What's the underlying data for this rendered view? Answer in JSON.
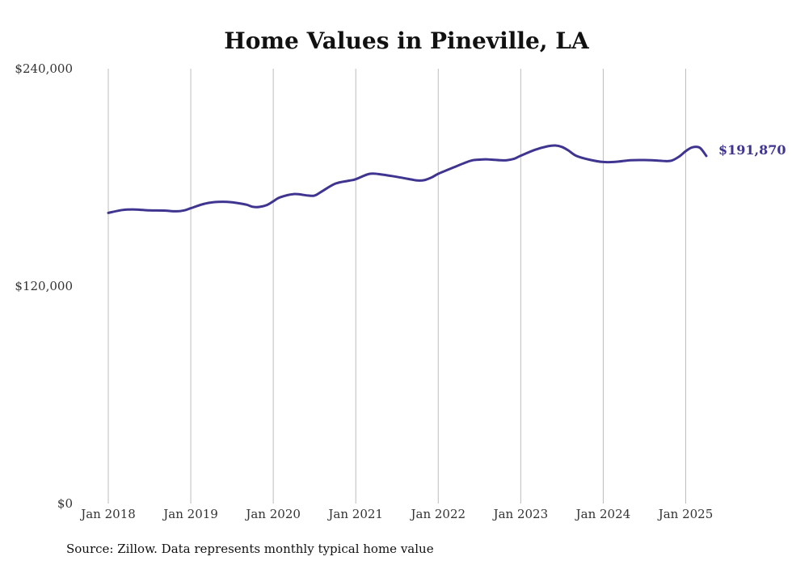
{
  "chart_data": {
    "type": "line",
    "title": "Home Values in Pineville, LA",
    "source": "Source: Zillow. Data represents monthly typical home value",
    "ylim": [
      0,
      240000
    ],
    "y_ticks": [
      {
        "value": 0,
        "label": "$0"
      },
      {
        "value": 120000,
        "label": "$120,000"
      },
      {
        "value": 240000,
        "label": "$240,000"
      }
    ],
    "x_ticks": [
      {
        "value": 2018.0,
        "label": "Jan 2018"
      },
      {
        "value": 2019.0,
        "label": "Jan 2019"
      },
      {
        "value": 2020.0,
        "label": "Jan 2020"
      },
      {
        "value": 2021.0,
        "label": "Jan 2021"
      },
      {
        "value": 2022.0,
        "label": "Jan 2022"
      },
      {
        "value": 2023.0,
        "label": "Jan 2023"
      },
      {
        "value": 2024.0,
        "label": "Jan 2024"
      },
      {
        "value": 2025.0,
        "label": "Jan 2025"
      }
    ],
    "xlim": [
      2018.0,
      2025.25
    ],
    "grid": "vertical",
    "line_color": "#3f3590",
    "end_label": "$191,870",
    "series": [
      {
        "points": [
          [
            2018.0,
            160400
          ],
          [
            2018.17,
            162000
          ],
          [
            2018.33,
            162300
          ],
          [
            2018.5,
            161800
          ],
          [
            2018.67,
            161700
          ],
          [
            2018.83,
            161300
          ],
          [
            2018.92,
            161800
          ],
          [
            2019.0,
            163000
          ],
          [
            2019.17,
            165500
          ],
          [
            2019.33,
            166500
          ],
          [
            2019.5,
            166300
          ],
          [
            2019.67,
            165000
          ],
          [
            2019.75,
            163800
          ],
          [
            2019.83,
            163700
          ],
          [
            2019.92,
            164700
          ],
          [
            2020.0,
            166800
          ],
          [
            2020.08,
            169000
          ],
          [
            2020.25,
            170800
          ],
          [
            2020.42,
            170000
          ],
          [
            2020.5,
            170000
          ],
          [
            2020.58,
            172000
          ],
          [
            2020.75,
            176500
          ],
          [
            2020.92,
            178200
          ],
          [
            2021.0,
            179000
          ],
          [
            2021.17,
            182000
          ],
          [
            2021.33,
            181500
          ],
          [
            2021.5,
            180300
          ],
          [
            2021.67,
            178900
          ],
          [
            2021.75,
            178300
          ],
          [
            2021.83,
            178500
          ],
          [
            2021.92,
            180000
          ],
          [
            2022.0,
            182000
          ],
          [
            2022.17,
            185200
          ],
          [
            2022.33,
            188200
          ],
          [
            2022.42,
            189500
          ],
          [
            2022.5,
            189800
          ],
          [
            2022.58,
            190000
          ],
          [
            2022.75,
            189500
          ],
          [
            2022.83,
            189500
          ],
          [
            2022.92,
            190300
          ],
          [
            2023.0,
            192000
          ],
          [
            2023.17,
            195200
          ],
          [
            2023.33,
            197200
          ],
          [
            2023.42,
            197600
          ],
          [
            2023.5,
            196800
          ],
          [
            2023.58,
            194800
          ],
          [
            2023.67,
            192000
          ],
          [
            2023.83,
            189800
          ],
          [
            2024.0,
            188500
          ],
          [
            2024.17,
            188700
          ],
          [
            2024.33,
            189500
          ],
          [
            2024.5,
            189600
          ],
          [
            2024.67,
            189300
          ],
          [
            2024.75,
            189000
          ],
          [
            2024.83,
            189300
          ],
          [
            2024.92,
            191500
          ],
          [
            2025.0,
            194500
          ],
          [
            2025.08,
            196600
          ],
          [
            2025.17,
            196400
          ],
          [
            2025.25,
            191870
          ]
        ]
      }
    ]
  }
}
